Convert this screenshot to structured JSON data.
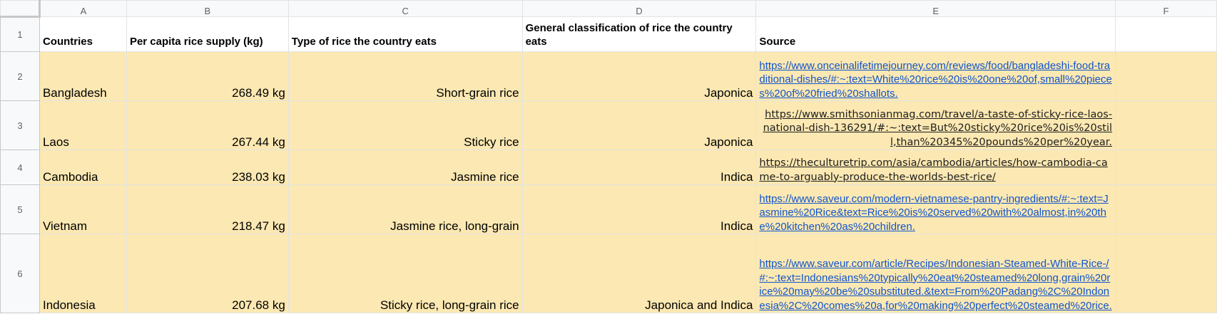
{
  "columns": [
    "A",
    "B",
    "C",
    "D",
    "E",
    "F"
  ],
  "header": {
    "row_number": "1",
    "countries": "Countries",
    "supply": "Per capita rice supply (kg)",
    "type": "Type of rice the country eats",
    "classification": "General classification of rice the country eats",
    "source": "Source"
  },
  "rows": [
    {
      "row_number": "2",
      "country": "Bangladesh",
      "supply": "268.49 kg",
      "type": "Short-grain rice",
      "classification": "Japonica",
      "source": "https://www.onceinalifetimejourney.com/reviews/food/bangladeshi-food-traditional-dishes/#:~:text=White%20rice%20is%20one%20of,small%20pieces%20of%20fried%20shallots."
    },
    {
      "row_number": "3",
      "country": "Laos",
      "supply": "267.44 kg",
      "type": "Sticky rice",
      "classification": "Japonica",
      "source": "https://www.smithsonianmag.com/travel/a-taste-of-sticky-rice-laos-national-dish-136291/#:~:text=But%20sticky%20rice%20is%20still,than%20345%20pounds%20per%20year."
    },
    {
      "row_number": "4",
      "country": "Cambodia",
      "supply": "238.03 kg",
      "type": "Jasmine rice",
      "classification": "Indica",
      "source": "https://theculturetrip.com/asia/cambodia/articles/how-cambodia-came-to-arguably-produce-the-worlds-best-rice/"
    },
    {
      "row_number": "5",
      "country": "Vietnam",
      "supply": "218.47 kg",
      "type": "Jasmine rice, long-grain",
      "classification": "Indica",
      "source": "https://www.saveur.com/modern-vietnamese-pantry-ingredients/#:~:text=Jasmine%20Rice&text=Rice%20is%20served%20with%20almost,in%20the%20kitchen%20as%20children."
    },
    {
      "row_number": "6",
      "country": "Indonesia",
      "supply": "207.68 kg",
      "type": "Sticky rice, long-grain rice",
      "classification": "Japonica and Indica",
      "source": "https://www.saveur.com/article/Recipes/Indonesian-Steamed-White-Rice-/#:~:text=Indonesians%20typically%20eat%20steamed%20long,grain%20rice%20may%20be%20substituted.&text=From%20Padang%2C%20Indonesia%2C%20comes%20a,for%20making%20perfect%20steamed%20rice."
    }
  ],
  "colors": {
    "highlight": "#fce8b2",
    "link": "#1155cc",
    "header_bg": "#f8f9fa"
  }
}
